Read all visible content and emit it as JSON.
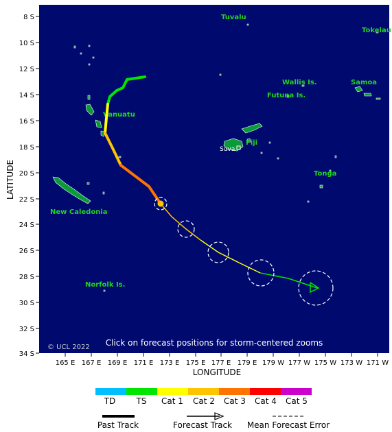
{
  "map": {
    "lat_labels": [
      "8 S",
      "10 S",
      "12 S",
      "14 S",
      "16 S",
      "18 S",
      "20 S",
      "22 S",
      "24 S",
      "26 S",
      "28 S",
      "30 S",
      "32 S",
      "34 S"
    ],
    "lon_labels": [
      "165 E",
      "167 E",
      "169 E",
      "171 E",
      "173 E",
      "175 E",
      "177 E",
      "179 E",
      "179 W",
      "177 W",
      "175 W",
      "173 W",
      "171 W"
    ],
    "lat_axis_title": "LATITUDE",
    "lon_axis_title": "LONGITUDE",
    "copyright": "© UCL 2022",
    "hint": "Click on forecast positions for storm-centered zooms",
    "ocean_color": "#000a6e",
    "land_color": "#0a9a3a",
    "place_label_color": "#22d422"
  },
  "places": {
    "tuvalu": "Tuvalu",
    "tokelau": "Tokelau",
    "wallis": "Wallis Is.",
    "samoa": "Samoa",
    "futuna": "Futuna Is.",
    "vanuatu": "Vanuatu",
    "fiji": "Fiji",
    "suva": "Suva",
    "tonga": "Tonga",
    "new_caledonia": "New Caledonia",
    "norfolk": "Norfolk Is."
  },
  "legend": {
    "categories": [
      {
        "label": "TD",
        "color": "#00bfff"
      },
      {
        "label": "TS",
        "color": "#00e600"
      },
      {
        "label": "Cat 1",
        "color": "#ffff00"
      },
      {
        "label": "Cat 2",
        "color": "#ffc400"
      },
      {
        "label": "Cat 3",
        "color": "#ff7300"
      },
      {
        "label": "Cat 4",
        "color": "#ff0000"
      },
      {
        "label": "Cat 5",
        "color": "#cc00cc"
      }
    ],
    "past_track": "Past Track",
    "forecast_track": "Forecast Track",
    "mean_error": "Mean Forecast Error"
  }
}
